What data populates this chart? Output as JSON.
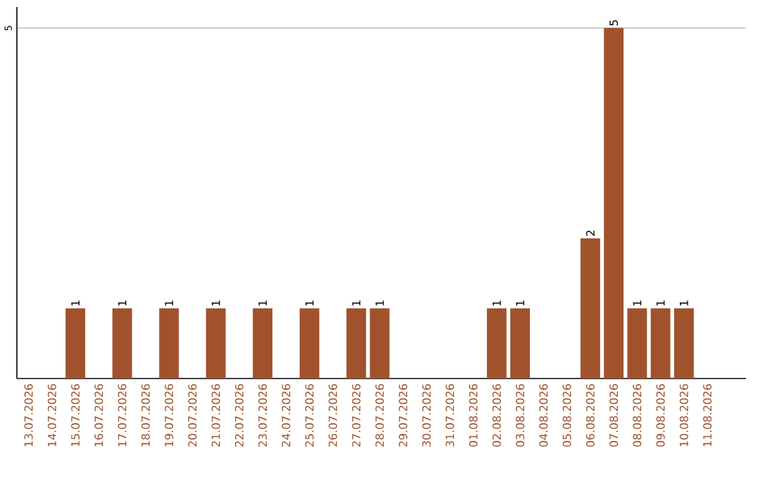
{
  "chart_data": {
    "type": "bar",
    "categories": [
      "13.07.2026",
      "14.07.2026",
      "15.07.2026",
      "16.07.2026",
      "17.07.2026",
      "18.07.2026",
      "19.07.2026",
      "20.07.2026",
      "21.07.2026",
      "22.07.2026",
      "23.07.2026",
      "24.07.2026",
      "25.07.2026",
      "26.07.2026",
      "27.07.2026",
      "28.07.2026",
      "29.07.2026",
      "30.07.2026",
      "31.07.2026",
      "01.08.2026",
      "02.08.2026",
      "03.08.2026",
      "04.08.2026",
      "05.08.2026",
      "06.08.2026",
      "07.08.2026",
      "08.08.2026",
      "09.08.2026",
      "10.08.2026",
      "11.08.2026"
    ],
    "values": [
      0,
      0,
      1,
      0,
      1,
      0,
      1,
      0,
      1,
      0,
      1,
      0,
      1,
      0,
      1,
      1,
      0,
      0,
      0,
      0,
      1,
      1,
      0,
      0,
      2,
      5,
      1,
      1,
      1,
      0
    ],
    "value_labels": [
      null,
      null,
      "1",
      null,
      "1",
      null,
      "1",
      null,
      "1",
      null,
      "1",
      null,
      "1",
      null,
      "1",
      "1",
      null,
      null,
      null,
      null,
      "1",
      "1",
      null,
      null,
      "2",
      "5",
      "1",
      "1",
      "1",
      null
    ],
    "color": "#a0522d",
    "ylim": [
      0,
      5.3
    ],
    "yticks": [
      5
    ],
    "grid": "y"
  }
}
